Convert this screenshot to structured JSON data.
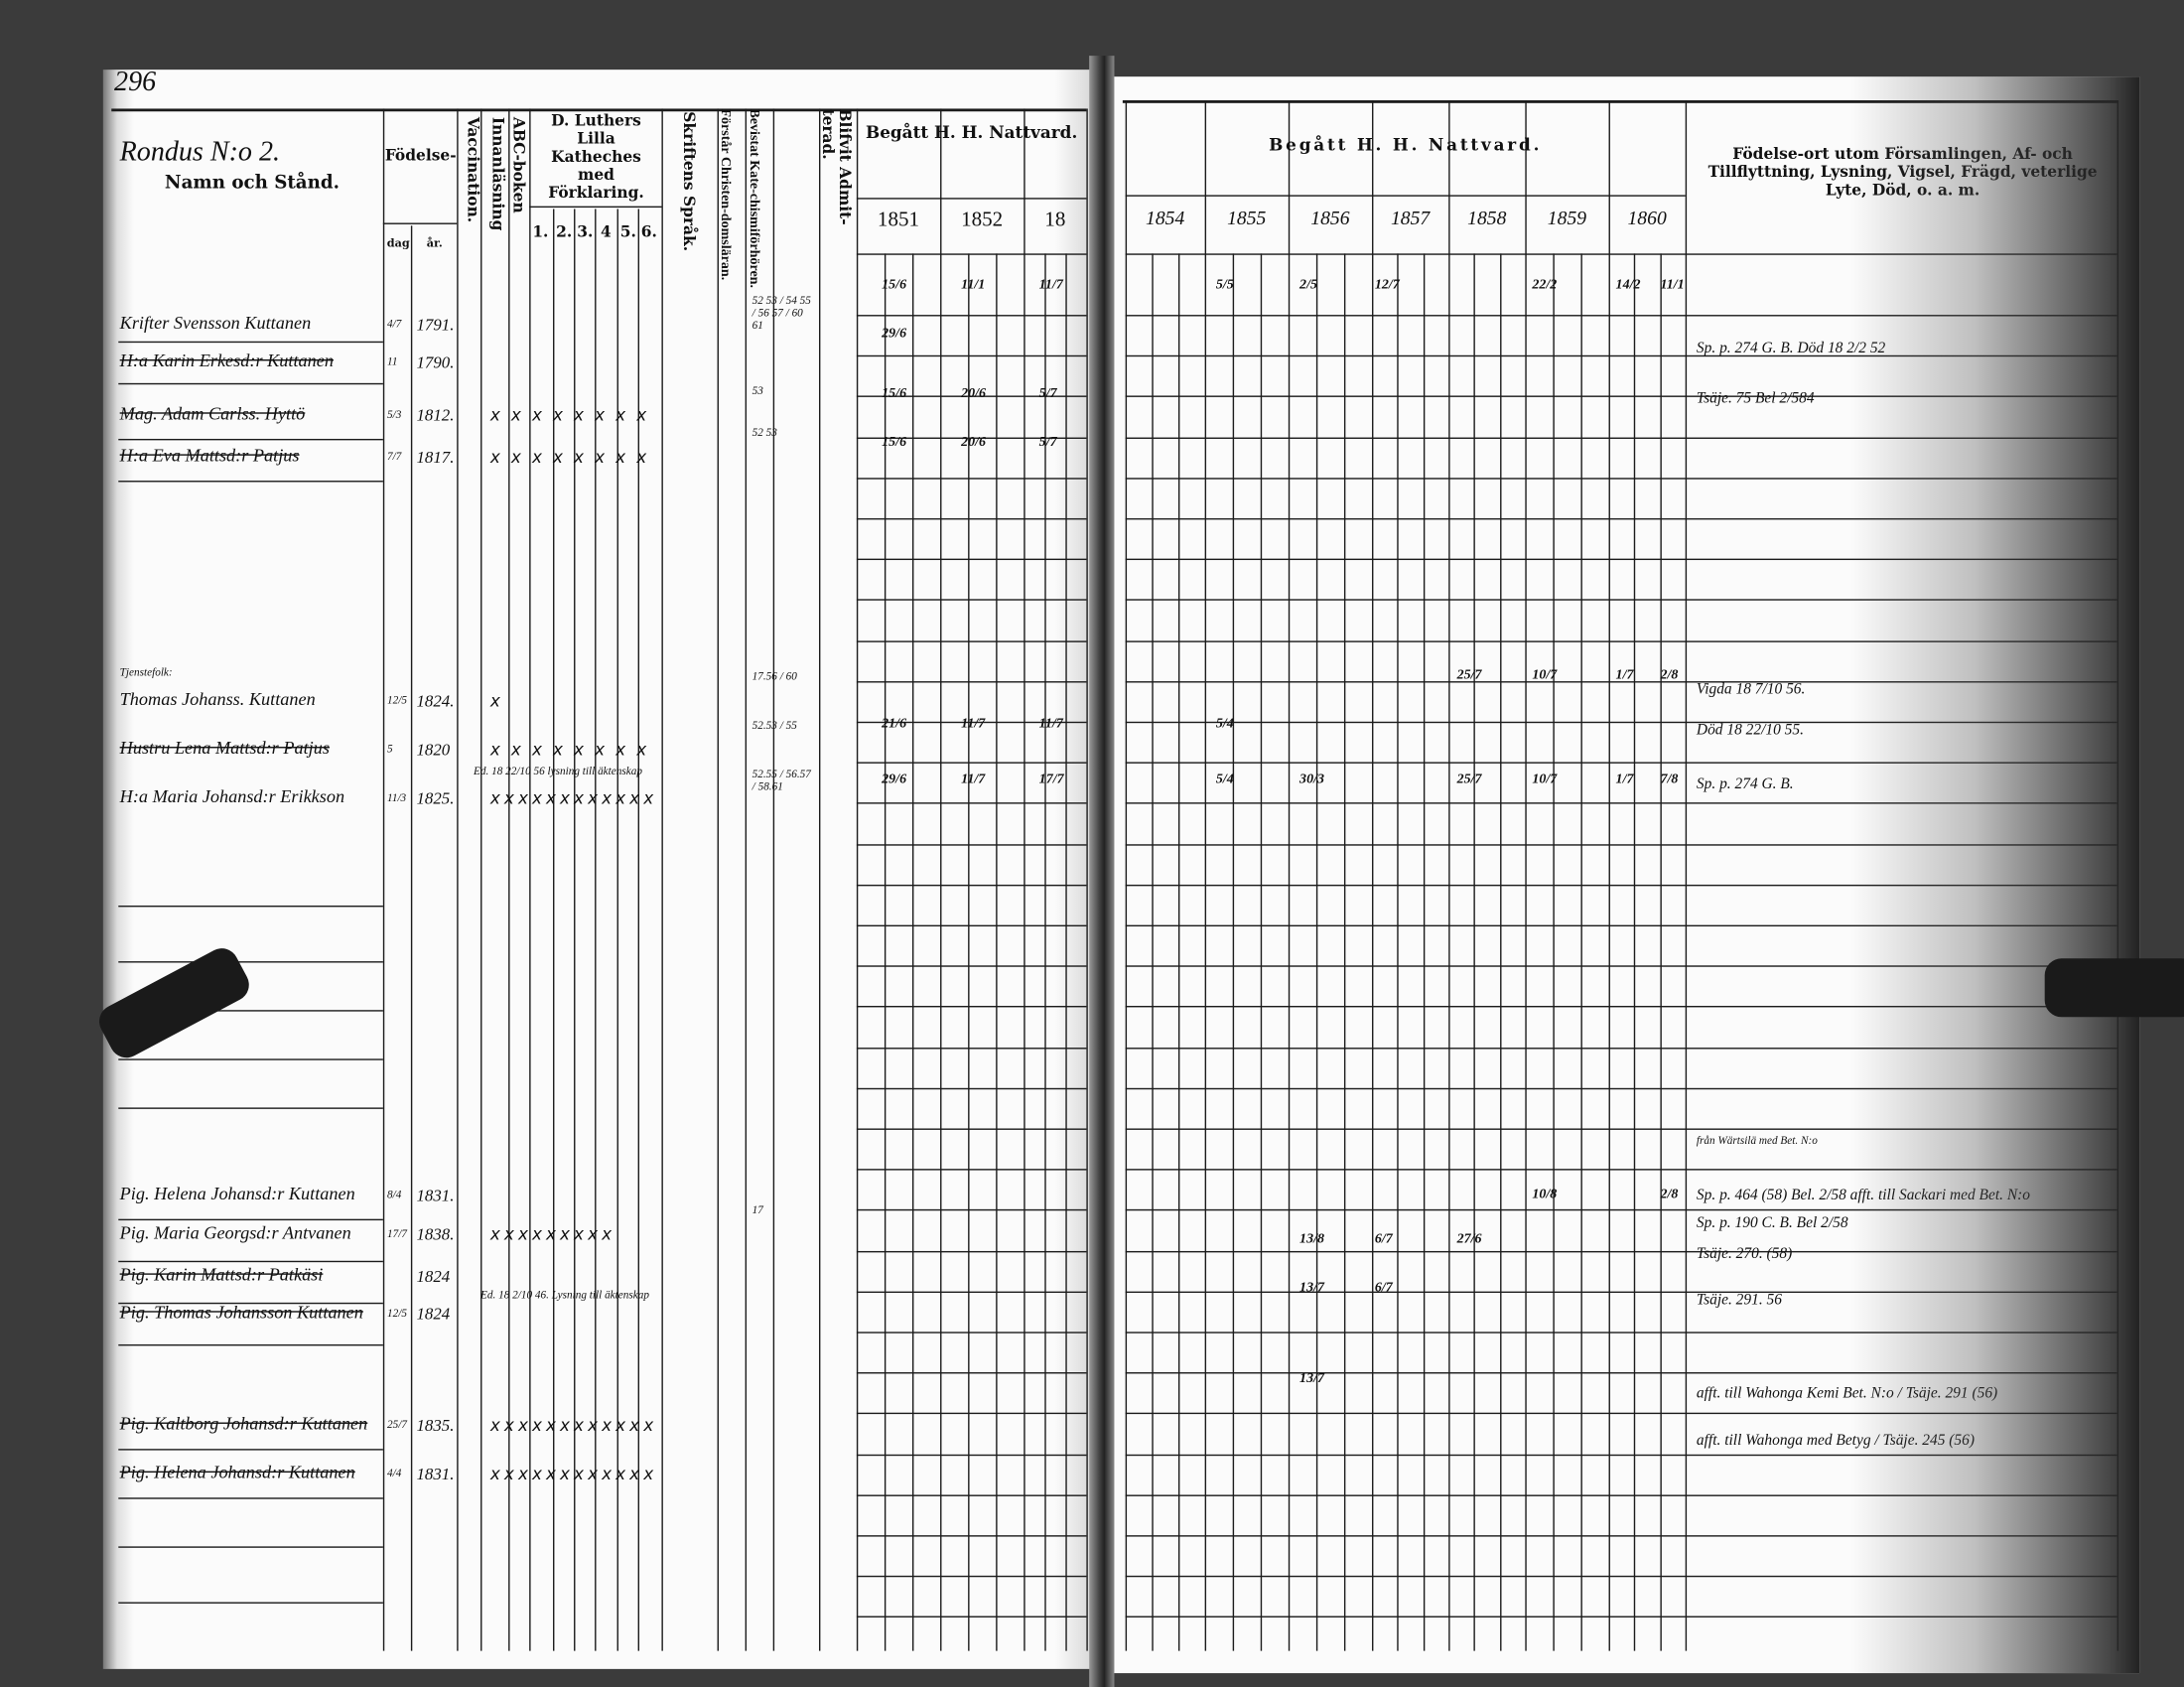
{
  "page_number": "296",
  "left_header": {
    "household": "Rondus N:o 2.",
    "name_col": "Namn och Stånd.",
    "birth": "Födelse-",
    "birth_day": "dag",
    "birth_year": "år.",
    "vaccination": "Vaccination.",
    "innanlasning": "Innanläsning",
    "abc": "ABC-boken",
    "luther": "D. Luthers Lilla Katheches med Förklaring.",
    "luther_parts": [
      "1.",
      "2.",
      "3.",
      "4",
      "5.",
      "6."
    ],
    "skriftens": "Skriftens Språk.",
    "forstar": "Förstår Christen-domsläran.",
    "bevistat": "Bevistat Kate-chismiförhören.",
    "admitterad": "Blifvit Admit-terad.",
    "communion": "Begått H. H. Nattvard.",
    "years": [
      "1851",
      "1852",
      "18"
    ]
  },
  "right_header": {
    "communion": "Begått H. H. Nattvard.",
    "years": [
      "1854",
      "1855",
      "1856",
      "1857",
      "1858",
      "1859",
      "1860"
    ],
    "remarks": "Födelse-ort utom Församlingen, Af- och Tillflyttning, Lysning, Vigsel, Frägd, veterlige Lyte, Död, o. a. m."
  },
  "group_label": "Tjenstefolk:",
  "rows": [
    {
      "name": "Krifter Svensson Kuttanen",
      "struck": false,
      "day": "4/7",
      "year": "1791.",
      "marks": 0,
      "catechism": "52 53 / 54 55 / 56 57 / 60 61",
      "communion": {
        "1851": "15/6",
        "1852": "11/1",
        "1853": "11/7",
        "1855": "5/5",
        "1856": "2/5",
        "1857": "12/7",
        "1859": "22/2",
        "1860": "14/2",
        "extra": "11/1"
      },
      "remark": ""
    },
    {
      "name": "H:a Karin Erkesd:r Kuttanen",
      "struck": true,
      "day": "11",
      "year": "1790.",
      "marks": 0,
      "catechism": "",
      "communion": {
        "1851": "29/6"
      },
      "remark": "Sp. p. 274 G. B. Död 18 2/2 52"
    },
    {
      "name": "Mag. Adam Carlss. Hyttö",
      "struck": true,
      "day": "5/3",
      "year": "1812.",
      "marks": 8,
      "catechism": "53",
      "communion": {
        "1851": "15/6",
        "1852": "20/6",
        "1853": "5/7"
      },
      "remark": "Tsäje. 75 Bel 2/584"
    },
    {
      "name": "H:a Eva Mattsd:r Patjus",
      "struck": true,
      "day": "7/7",
      "year": "1817.",
      "marks": 8,
      "catechism": "52 53",
      "communion": {
        "1851": "15/6",
        "1852": "20/6",
        "1853": "5/7"
      },
      "remark": ""
    },
    {
      "name": "Thomas Johanss. Kuttanen",
      "struck": false,
      "day": "12/5",
      "year": "1824.",
      "marks": 1,
      "catechism": "17.56 / 60",
      "communion": {
        "1858": "25/7",
        "1859": "10/7",
        "1860": "1/7",
        "extra": "2/8"
      },
      "remark": "Vigda 18 7/10 56."
    },
    {
      "name": "Hustru Lena Mattsd:r Patjus",
      "struck": true,
      "day": "5",
      "year": "1820",
      "marks": 8,
      "catechism": "52.53 / 55",
      "communion": {
        "1851": "21/6",
        "1852": "11/7",
        "1853": "11/7",
        "1855": "5/4"
      },
      "remark": "Död 18 22/10 55."
    },
    {
      "name": "H:a Maria Johansd:r Erikkson",
      "struck": false,
      "day": "11/3",
      "year": "1825.",
      "marks": 12,
      "catechism": "52.55 / 56.57 / 58.61",
      "communion": {
        "1851": "29/6",
        "1852": "11/7",
        "1853": "17/7",
        "1855": "5/4",
        "1856": "30/3",
        "1858": "25/7",
        "1859": "10/7",
        "1860": "1/7",
        "extra": "7/8"
      },
      "remark": "Sp. p. 274 G. B."
    },
    {
      "name": "Pig. Helena Johansd:r Kuttanen",
      "struck": false,
      "day": "8/4",
      "year": "1831.",
      "marks": 0,
      "catechism": "",
      "communion": {
        "1859": "10/8",
        "extra": "2/8"
      },
      "remark": "Sp. p. 464 (58) Bel. 2/58 afft. till Sackari med Bet. N:o"
    },
    {
      "name": "Pig. Maria Georgsd:r Antvanen",
      "struck": false,
      "day": "17/7",
      "year": "1838.",
      "marks": 9,
      "catechism": "17",
      "communion": {
        "1856": "13/8",
        "1857": "6/7",
        "1858": "27/6"
      },
      "remark": "Sp. p. 190 C. B. Bel 2/58"
    },
    {
      "name": "Pig. Karin Mattsd:r Patkäsi",
      "struck": true,
      "day": "",
      "year": "1824",
      "marks": 0,
      "catechism": "",
      "communion": {
        "1856": "13/7",
        "1857": "6/7"
      },
      "remark": "Tsäje. 270. (58)"
    },
    {
      "name": "Pig. Thomas Johansson Kuttanen",
      "struck": true,
      "day": "12/5",
      "year": "1824",
      "marks": 0,
      "catechism": "",
      "communion": {},
      "remark": "Tsäje. 291. 56"
    },
    {
      "name": "Pig. Kaltborg Johansd:r Kuttanen",
      "struck": true,
      "day": "25/7",
      "year": "1835.",
      "marks": 12,
      "catechism": "",
      "communion": {
        "1856": "13/7"
      },
      "remark": "afft. till Wahonga Kemi Bet. N:o / Tsäje. 291 (56)"
    },
    {
      "name": "Pig. Helena Johansd:r Kuttanen",
      "struck": true,
      "day": "4/4",
      "year": "1831.",
      "marks": 12,
      "catechism": "",
      "communion": {},
      "remark": "afft. till Wahonga med Betyg / Tsäje. 245 (56)"
    }
  ],
  "notes": [
    "Ed. 18 22/10 56 lysning till äktenskap",
    "Ed. 18 2/10 46. Lysning till äktenskap",
    "från Wärtsilä med Bet. N:o"
  ]
}
